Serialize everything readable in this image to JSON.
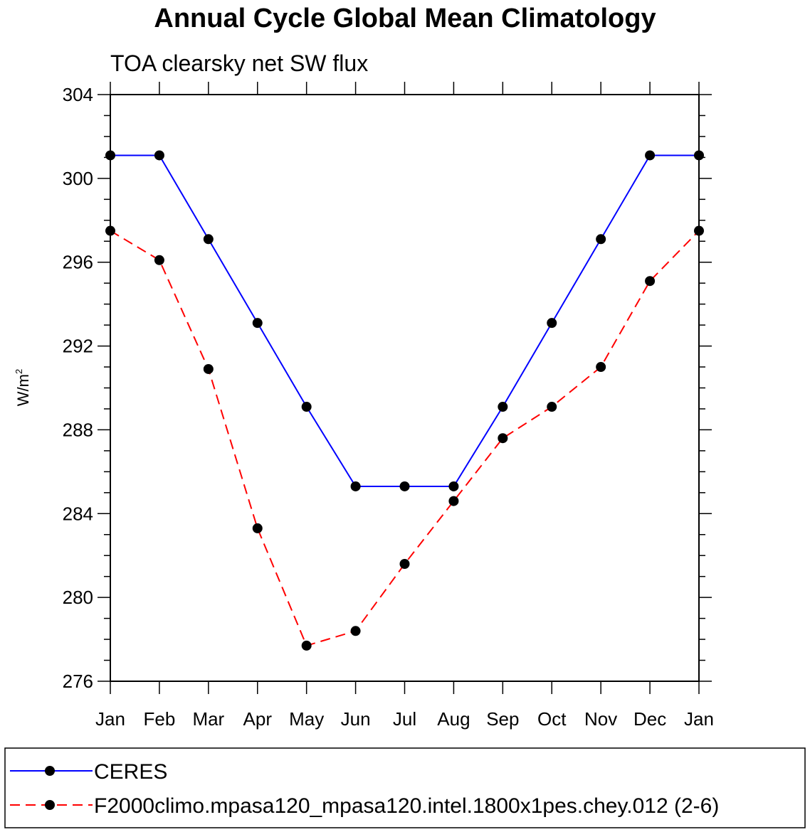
{
  "chart_data": {
    "type": "line",
    "title": "Annual Cycle Global Mean Climatology",
    "subtitle": "TOA clearsky net SW flux",
    "ylabel": "W/m",
    "ylabel_superscript": "2",
    "xlabel": "",
    "categories": [
      "Jan",
      "Feb",
      "Mar",
      "Apr",
      "May",
      "Jun",
      "Jul",
      "Aug",
      "Sep",
      "Oct",
      "Nov",
      "Dec",
      "Jan"
    ],
    "ylim": [
      276,
      304
    ],
    "yticks": [
      276,
      280,
      284,
      288,
      292,
      296,
      300,
      304
    ],
    "grid": false,
    "legend_position": "bottom",
    "series": [
      {
        "name": "CERES",
        "color": "#0000ff",
        "line_style": "solid",
        "marker": "filled-circle",
        "values": [
          301.1,
          301.1,
          297.1,
          293.1,
          289.1,
          285.3,
          285.3,
          285.3,
          289.1,
          293.1,
          297.1,
          301.1,
          301.1
        ]
      },
      {
        "name": "F2000climo.mpasa120_mpasa120.intel.1800x1pes.chey.012 (2-6)",
        "color": "#ff0000",
        "line_style": "dashed",
        "marker": "filled-circle",
        "values": [
          297.5,
          296.1,
          290.9,
          283.3,
          277.7,
          278.4,
          281.6,
          284.6,
          287.6,
          289.1,
          291.0,
          295.1,
          297.5
        ]
      }
    ]
  }
}
